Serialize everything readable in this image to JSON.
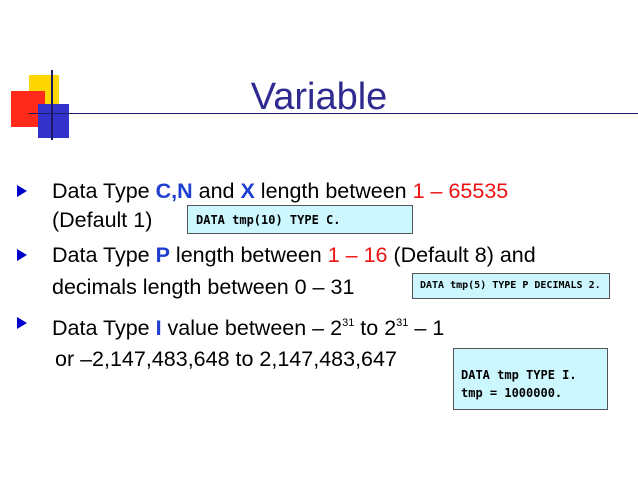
{
  "title": "Variable",
  "bullets": [
    {
      "line1": {
        "a": "Data Type ",
        "b": "C",
        "c": ",",
        "d": "N",
        "e": " and ",
        "f": "X",
        "g": " length between ",
        "h": "1 – 65535"
      },
      "line2": "(Default 1)"
    },
    {
      "line1": {
        "a": "Data Type ",
        "b": "P",
        "c": " length between ",
        "d": "1 – 16",
        "e": " (Default 8) and"
      },
      "line2": "decimals length between 0 – 31"
    },
    {
      "line1": {
        "a": "Data Type ",
        "b": "I",
        "c": " value between – 2",
        "d": "31",
        "e": " to 2",
        "f": "31",
        "g": " – 1"
      },
      "line2": "or –2,147,483,648 to 2,147,483,647"
    }
  ],
  "code_boxes": {
    "box1": "DATA tmp(10) TYPE C.",
    "box2": "DATA tmp(5) TYPE P DECIMALS 2.",
    "box3_line1": "DATA tmp TYPE I.",
    "box3_line2": "tmp = 1000000."
  },
  "colors": {
    "title": "#2e2a8f",
    "accent_blue": "#1f3fd0",
    "accent_red": "#ee1111",
    "box_bg": "#ccf7ff"
  }
}
